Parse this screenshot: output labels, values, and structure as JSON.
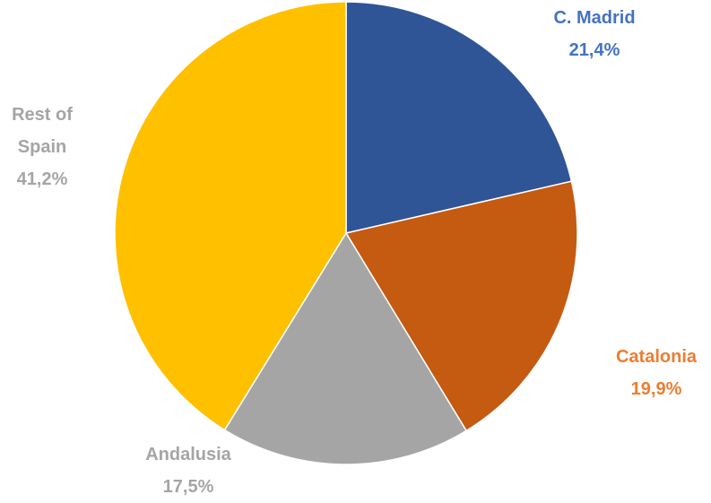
{
  "chart_data": {
    "type": "pie",
    "categories": [
      "C. Madrid",
      "Catalonia",
      "Andalusia",
      "Rest of Spain"
    ],
    "values": [
      21.4,
      19.9,
      17.5,
      41.2
    ],
    "value_labels": [
      "21,4%",
      "19,9%",
      "17,5%",
      "41,2%"
    ],
    "colors": [
      "#2f5597",
      "#c55a11",
      "#a5a5a5",
      "#ffc000"
    ],
    "label_colors": [
      "#4472c4",
      "#ed7d31",
      "#a5a5a5",
      "#a5a5a5"
    ]
  }
}
